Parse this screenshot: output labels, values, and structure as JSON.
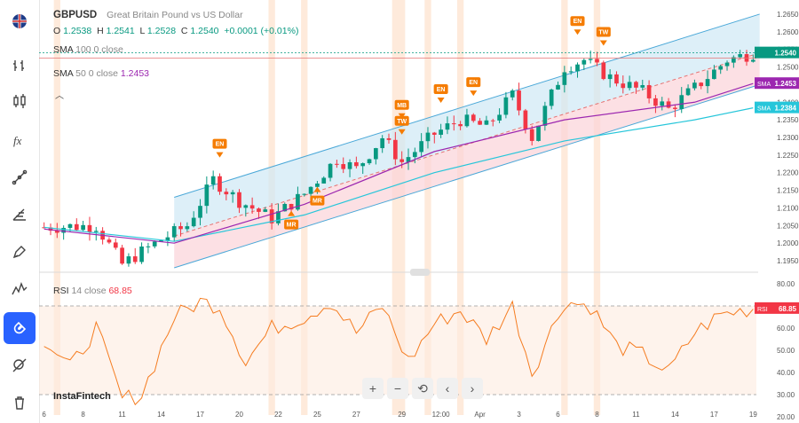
{
  "symbol": "GBPUSD",
  "description": "Great Britain Pound vs US Dollar",
  "ohlc": {
    "o_label": "O",
    "o": "1.2538",
    "h_label": "H",
    "h": "1.2541",
    "l_label": "L",
    "l": "1.2528",
    "c_label": "C",
    "c": "1.2540",
    "change": "+0.0001 (+0.01%)"
  },
  "indicators": {
    "sma100": {
      "label": "SMA",
      "params": "100 0 close",
      "value": ""
    },
    "sma50": {
      "label": "SMA",
      "params": "50 0 close",
      "value": "1.2453"
    },
    "rsi": {
      "label": "RSI",
      "params": "14 close",
      "value": "68.85"
    }
  },
  "price_tags": {
    "last": "1.2540",
    "sma50_label": "SMA",
    "sma50": "1.2453",
    "sma100_label": "SMA",
    "sma100": "1.2384",
    "rsi_label": "RSI",
    "rsi": "68.85"
  },
  "branding": "InstaFintech",
  "zoom_controls": [
    "+",
    "−",
    "⟲",
    "‹",
    "›"
  ],
  "colors": {
    "up": "#089981",
    "down": "#f23645",
    "sma50": "#9c27b0",
    "sma100": "#26c6da",
    "channel": "#4aa8d8",
    "rsi": "#f57c20",
    "marker": "#f57c00",
    "accent": "#2962ff"
  },
  "toolbar_icons": [
    "flag-icon",
    "chart-type-icon",
    "candles-icon",
    "fx-icon",
    "drawing-icon",
    "fib-icon",
    "pen-icon",
    "patterns-icon",
    "magnet-icon",
    "eye-off-icon",
    "trash-icon"
  ],
  "chart_data": [
    {
      "type": "candlestick",
      "y_ticks": [
        "1.2650",
        "1.2600",
        "1.2550",
        "1.2500",
        "1.2450",
        "1.2400",
        "1.2350",
        "1.2300",
        "1.2250",
        "1.2200",
        "1.2150",
        "1.2100",
        "1.2050",
        "1.2000",
        "1.1950"
      ],
      "ylim": [
        1.1935,
        1.267
      ],
      "x_ticks": [
        "6",
        "8",
        "11",
        "14",
        "17",
        "20",
        "22",
        "25",
        "27",
        "29",
        "12:00",
        "Apr",
        "3",
        "6",
        "8",
        "11",
        "14",
        "17",
        "19"
      ],
      "series": [
        {
          "name": "SMA 100",
          "x": [
            0,
            20,
            40,
            60,
            80,
            100,
            110
          ],
          "values": [
            1.2045,
            1.2005,
            1.208,
            1.22,
            1.229,
            1.235,
            1.2384
          ]
        },
        {
          "name": "SMA 50",
          "x": [
            0,
            20,
            40,
            60,
            80,
            100,
            110
          ],
          "values": [
            1.204,
            1.2,
            1.211,
            1.226,
            1.235,
            1.24,
            1.2453
          ]
        }
      ],
      "annotations": [
        {
          "label": "EN",
          "x": 27,
          "dir": "down"
        },
        {
          "label": "MR",
          "x": 38,
          "dir": "up"
        },
        {
          "label": "MR",
          "x": 42,
          "dir": "up"
        },
        {
          "label": "MB",
          "x": 55,
          "dir": "down"
        },
        {
          "label": "TW",
          "x": 55,
          "dir": "down"
        },
        {
          "label": "EN",
          "x": 61,
          "dir": "down"
        },
        {
          "label": "EN",
          "x": 66,
          "dir": "down"
        },
        {
          "label": "EN",
          "x": 82,
          "dir": "down"
        },
        {
          "label": "TW",
          "x": 86,
          "dir": "down"
        }
      ]
    },
    {
      "type": "line",
      "title": "RSI",
      "y_ticks": [
        "80.00",
        "70.00",
        "60.00",
        "50.00",
        "40.00",
        "30.00",
        "20.00"
      ],
      "ylim": [
        20,
        80
      ],
      "levels": [
        70,
        30
      ]
    }
  ]
}
